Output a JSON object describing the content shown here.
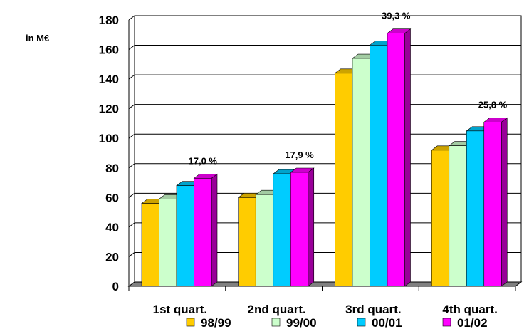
{
  "chart_data": {
    "type": "bar",
    "unit_label": "in M€",
    "categories": [
      "1st quart.",
      "2nd quart.",
      "3rd quart.",
      "4th quart."
    ],
    "series": [
      {
        "name": "98/99",
        "values": [
          56,
          60,
          144,
          92
        ],
        "color": "#FFCC00"
      },
      {
        "name": "99/00",
        "values": [
          59,
          62,
          154,
          95
        ],
        "color": "#CCFFCC"
      },
      {
        "name": "00/01",
        "values": [
          68,
          76,
          163,
          105
        ],
        "color": "#00CCFF"
      },
      {
        "name": "01/02",
        "values": [
          73,
          77,
          171,
          111
        ],
        "color": "#FF00FF"
      }
    ],
    "annotations": [
      "17,0 %",
      "17,9 %",
      "39,3 %",
      "25,8 %"
    ],
    "ylim": [
      0,
      180
    ],
    "yticks": [
      0,
      20,
      40,
      60,
      80,
      100,
      120,
      140,
      160,
      180
    ],
    "grid": true,
    "legend_position": "bottom"
  }
}
